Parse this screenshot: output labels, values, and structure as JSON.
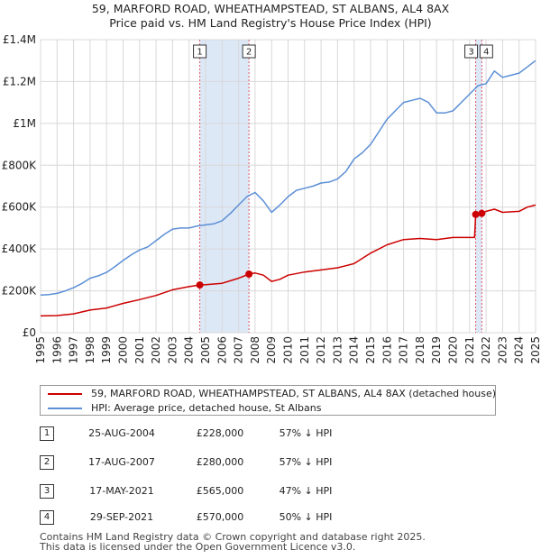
{
  "title": {
    "line1": "59, MARFORD ROAD, WHEATHAMPSTEAD, ST ALBANS, AL4 8AX",
    "line2": "Price paid vs. HM Land Registry's House Price Index (HPI)"
  },
  "colors": {
    "property": "#cc0000",
    "hpi": "#5b8fd6",
    "shade": "#dde8f7",
    "grid": "#d8d8d8",
    "event_line": "#dd5566"
  },
  "chart_data": {
    "type": "line",
    "x_range": [
      1995,
      2025
    ],
    "ylim": [
      0,
      1400000
    ],
    "y_ticks": [
      0,
      200000,
      400000,
      600000,
      800000,
      1000000,
      1200000,
      1400000
    ],
    "y_tick_labels": [
      "£0",
      "£200K",
      "£400K",
      "£600K",
      "£800K",
      "£1M",
      "£1.2M",
      "£1.4M"
    ],
    "x_tick_labels": [
      "1995",
      "1996",
      "1997",
      "1998",
      "1999",
      "2000",
      "2001",
      "2002",
      "2003",
      "2004",
      "2005",
      "2006",
      "2007",
      "2008",
      "2009",
      "2010",
      "2011",
      "2012",
      "2013",
      "2014",
      "2015",
      "2016",
      "2017",
      "2018",
      "2019",
      "2020",
      "2021",
      "2022",
      "2023",
      "2024",
      "2025"
    ],
    "grid": true,
    "shaded_ranges": [
      [
        2004.65,
        2007.63
      ],
      [
        2021.37,
        2021.74
      ]
    ],
    "series": [
      {
        "name": "59, MARFORD ROAD, WHEATHAMPSTEAD, ST ALBANS, AL4 8AX (detached house)",
        "color": "#cc0000",
        "x": [
          1995.0,
          1996.0,
          1997.0,
          1998.0,
          1999.0,
          2000.0,
          2001.0,
          2002.0,
          2003.0,
          2004.0,
          2004.65,
          2005.0,
          2006.0,
          2007.0,
          2007.63,
          2008.0,
          2008.5,
          2009.0,
          2009.5,
          2010.0,
          2011.0,
          2012.0,
          2013.0,
          2014.0,
          2015.0,
          2016.0,
          2017.0,
          2018.0,
          2019.0,
          2020.0,
          2021.3,
          2021.37,
          2021.5,
          2021.74,
          2022.0,
          2022.5,
          2023.0,
          2024.0,
          2024.5,
          2025.0
        ],
        "values": [
          80000,
          82000,
          90000,
          108000,
          118000,
          140000,
          158000,
          178000,
          205000,
          220000,
          228000,
          229000,
          236000,
          260000,
          280000,
          285000,
          275000,
          245000,
          255000,
          275000,
          290000,
          300000,
          310000,
          330000,
          380000,
          420000,
          445000,
          450000,
          445000,
          455000,
          455000,
          565000,
          560000,
          570000,
          580000,
          590000,
          575000,
          580000,
          600000,
          610000
        ]
      },
      {
        "name": "HPI: Average price, detached house, St Albans",
        "color": "#5b8fd6",
        "x": [
          1995.0,
          1995.5,
          1996.0,
          1996.5,
          1997.0,
          1997.5,
          1998.0,
          1998.5,
          1999.0,
          1999.5,
          2000.0,
          2000.5,
          2001.0,
          2001.5,
          2002.0,
          2002.5,
          2003.0,
          2003.5,
          2004.0,
          2004.5,
          2005.0,
          2005.5,
          2006.0,
          2006.5,
          2007.0,
          2007.5,
          2008.0,
          2008.5,
          2009.0,
          2009.5,
          2010.0,
          2010.5,
          2011.0,
          2011.5,
          2012.0,
          2012.5,
          2013.0,
          2013.5,
          2014.0,
          2014.5,
          2015.0,
          2015.5,
          2016.0,
          2016.5,
          2017.0,
          2017.5,
          2018.0,
          2018.5,
          2019.0,
          2019.5,
          2020.0,
          2020.5,
          2021.0,
          2021.5,
          2022.0,
          2022.5,
          2023.0,
          2023.5,
          2024.0,
          2024.5,
          2025.0
        ],
        "values": [
          180000,
          182000,
          188000,
          200000,
          215000,
          235000,
          260000,
          272000,
          288000,
          315000,
          345000,
          372000,
          395000,
          410000,
          440000,
          470000,
          495000,
          500000,
          500000,
          510000,
          515000,
          520000,
          535000,
          570000,
          610000,
          650000,
          670000,
          630000,
          575000,
          610000,
          650000,
          680000,
          690000,
          700000,
          715000,
          720000,
          735000,
          770000,
          830000,
          860000,
          900000,
          960000,
          1020000,
          1060000,
          1100000,
          1110000,
          1120000,
          1100000,
          1050000,
          1050000,
          1060000,
          1100000,
          1140000,
          1180000,
          1190000,
          1250000,
          1220000,
          1230000,
          1240000,
          1270000,
          1300000
        ]
      }
    ],
    "sales": [
      {
        "id": "1",
        "x": 2004.65,
        "price": 228000
      },
      {
        "id": "2",
        "x": 2007.63,
        "price": 280000
      },
      {
        "id": "3",
        "x": 2021.37,
        "price": 565000
      },
      {
        "id": "4",
        "x": 2021.74,
        "price": 570000
      }
    ],
    "markers": [
      {
        "label": "1",
        "x": 2004.65
      },
      {
        "label": "2",
        "x": 2007.63
      },
      {
        "label": "3",
        "x": 2021.37
      },
      {
        "label": "4",
        "x": 2021.74
      }
    ]
  },
  "legend": {
    "property": "59, MARFORD ROAD, WHEATHAMPSTEAD, ST ALBANS, AL4 8AX (detached house)",
    "hpi": "HPI: Average price, detached house, St Albans"
  },
  "sales_table": [
    {
      "num": "1",
      "date": "25-AUG-2004",
      "price": "£228,000",
      "hpi": "57% ↓ HPI"
    },
    {
      "num": "2",
      "date": "17-AUG-2007",
      "price": "£280,000",
      "hpi": "57% ↓ HPI"
    },
    {
      "num": "3",
      "date": "17-MAY-2021",
      "price": "£565,000",
      "hpi": "47% ↓ HPI"
    },
    {
      "num": "4",
      "date": "29-SEP-2021",
      "price": "£570,000",
      "hpi": "50% ↓ HPI"
    }
  ],
  "footer": {
    "line1": "Contains HM Land Registry data © Crown copyright and database right 2025.",
    "line2": "This data is licensed under the Open Government Licence v3.0."
  }
}
